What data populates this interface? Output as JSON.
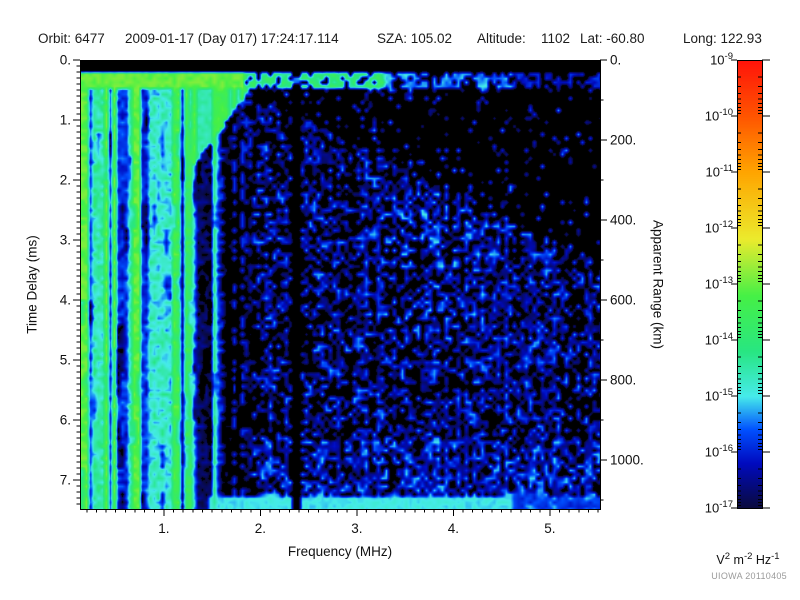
{
  "header": {
    "orbit": "Orbit: 6477",
    "datetime": "2009-01-17 (Day 017) 17:24:17.114",
    "sza": "SZA: 105.02",
    "altitude_label": "Altitude:",
    "altitude_value": "1102",
    "lat": "Lat: -60.80",
    "long": "Long: 122.93"
  },
  "watermark": "UIOWA 20110405",
  "colors": {
    "background": "#ffffff",
    "text": "#1c1c1c",
    "frame": "#000000",
    "watermark": "#9a9a9a",
    "plot_background": "#000000"
  },
  "chart_data": {
    "type": "heatmap",
    "xlabel": "Frequency (MHz)",
    "x_range": [
      0.13,
      5.52
    ],
    "x_major_ticks": {
      "values": [
        1,
        2,
        3,
        4,
        5
      ],
      "labels": [
        "1.",
        "2.",
        "3.",
        "4.",
        "5."
      ]
    },
    "x_minor_step": 0.1,
    "ylabel": "Time Delay (ms)",
    "y_range": [
      0,
      7.48
    ],
    "y_major_ticks": {
      "values": [
        0,
        1,
        2,
        3,
        4,
        5,
        6,
        7
      ],
      "labels": [
        "0.",
        "1.",
        "2.",
        "3.",
        "4.",
        "5.",
        "6.",
        "7."
      ]
    },
    "y_minor_step": 0.1,
    "y2label": "Apparent Range (km)",
    "y2_major_ticks": {
      "values": [
        0,
        200,
        400,
        600,
        800,
        1000
      ],
      "labels": [
        "0.",
        "200.",
        "400.",
        "600.",
        "800.",
        "1000."
      ]
    },
    "y2_minor_step": 100,
    "km_per_ms": 150,
    "grid": false,
    "z_scale": "log10",
    "z_range_log10": [
      -17,
      -9
    ],
    "z_units": "V^2 m^-2 Hz^-1",
    "colormap_stops": [
      [
        -17.0,
        "#0a0a3c"
      ],
      [
        -16.2,
        "#000abe"
      ],
      [
        -15.6,
        "#0050ff"
      ],
      [
        -15.0,
        "#46ebeb"
      ],
      [
        -14.2,
        "#28e682"
      ],
      [
        -13.2,
        "#46f046"
      ],
      [
        -12.2,
        "#ebeb2d"
      ],
      [
        -11.0,
        "#ffa500"
      ],
      [
        -10.0,
        "#ff5500"
      ],
      [
        -9.0,
        "#ff140a"
      ]
    ],
    "render_seed": 7,
    "features": [
      {
        "name": "top-blank-strip",
        "t_ms": [
          0,
          0.2
        ],
        "f_MHz": [
          0.1,
          5.5
        ],
        "level_log10": -17
      },
      {
        "name": "surface-reflection-band",
        "t_ms": [
          0.2,
          0.45
        ],
        "segments": [
          {
            "f_MHz": [
              0.1,
              1.85
            ],
            "level_log10": -13.25
          },
          {
            "f_MHz": [
              1.85,
              3.3
            ],
            "level_log10": -14.5
          },
          {
            "f_MHz": [
              3.3,
              4.6
            ],
            "level_log10": -15.7
          },
          {
            "f_MHz": [
              4.6,
              5.5
            ],
            "level_log10": -16.3
          }
        ]
      },
      {
        "name": "plasma-oscillation-stripes",
        "f_MHz": [
          0.1,
          1.9
        ],
        "t_ms": [
          0.45,
          7.48
        ],
        "level_log10_range": [
          -16.5,
          -13.3
        ],
        "bright_fraction": 0.4,
        "boost_below_MHz": 0.85
      },
      {
        "name": "ionosphere-echo-wedge",
        "f_MHz": [
          1.28,
          1.9
        ],
        "level_log10": -13.5,
        "t_bottom_coeff": [
          0.45,
          2.2
        ]
      },
      {
        "name": "diffuse-noise-speckle",
        "f_MHz": [
          1.9,
          5.5
        ],
        "level_log10_range": [
          -16.75,
          -15.1
        ],
        "fill_probability": 0.55
      },
      {
        "name": "quiet-upper-right-region",
        "t_dry_coeff": [
          0.55,
          0.78
        ]
      },
      {
        "name": "interference-gap",
        "f_MHz": [
          2.31,
          2.42
        ],
        "level_log10": -17
      },
      {
        "name": "dark-transition-band",
        "f_MHz": [
          1.58,
          1.9
        ]
      },
      {
        "name": "bottom-edge-band",
        "t_ms": [
          7.26,
          7.48
        ],
        "f_MHz": [
          1.45,
          4.6
        ],
        "level_log10": -15.2
      }
    ]
  },
  "colorbar": {
    "base": "10",
    "tick_exponents": [
      -9,
      -10,
      -11,
      -12,
      -13,
      -14,
      -15,
      -16,
      -17
    ],
    "units_segments": [
      {
        "t": "V"
      },
      {
        "t": "2",
        "sup": true
      },
      {
        "t": " m"
      },
      {
        "t": "-2",
        "sup": true
      },
      {
        "t": " Hz"
      },
      {
        "t": "-1",
        "sup": true
      }
    ]
  }
}
